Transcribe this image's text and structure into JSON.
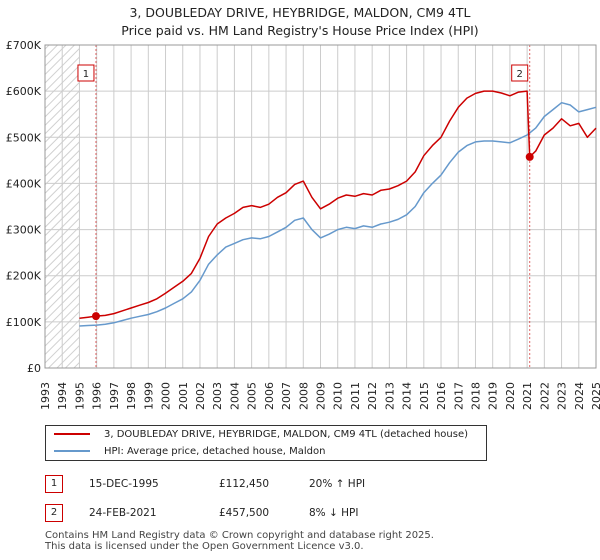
{
  "chart_data": {
    "type": "line",
    "title": "3, DOUBLEDAY DRIVE, HEYBRIDGE, MALDON, CM9 4TL",
    "subtitle": "Price paid vs. HM Land Registry's House Price Index (HPI)",
    "xlabel": "",
    "ylabel": "",
    "xlim": [
      1993,
      2025
    ],
    "ylim": [
      0,
      700000
    ],
    "x_ticks": [
      "1993",
      "1994",
      "1995",
      "1996",
      "1997",
      "1998",
      "1999",
      "2000",
      "2001",
      "2002",
      "2003",
      "2004",
      "2005",
      "2006",
      "2007",
      "2008",
      "2009",
      "2010",
      "2011",
      "2012",
      "2013",
      "2014",
      "2015",
      "2016",
      "2017",
      "2018",
      "2019",
      "2020",
      "2021",
      "2022",
      "2023",
      "2024",
      "2025"
    ],
    "y_ticks": [
      {
        "value": 0,
        "label": "£0"
      },
      {
        "value": 100000,
        "label": "£100K"
      },
      {
        "value": 200000,
        "label": "£200K"
      },
      {
        "value": 300000,
        "label": "£300K"
      },
      {
        "value": 400000,
        "label": "£400K"
      },
      {
        "value": 500000,
        "label": "£500K"
      },
      {
        "value": 600000,
        "label": "£600K"
      },
      {
        "value": 700000,
        "label": "£700K"
      }
    ],
    "hatched_ranges": [
      [
        1993,
        1995.0
      ],
      [
        2025.0,
        2025.5
      ]
    ],
    "grid": true,
    "series": [
      {
        "name": "3, DOUBLEDAY DRIVE, HEYBRIDGE, MALDON, CM9 4TL (detached house)",
        "color": "#cc0000",
        "x": [
          1995.0,
          1995.5,
          1995.96,
          1996.5,
          1997.0,
          1997.5,
          1998.0,
          1998.5,
          1999.0,
          1999.5,
          2000.0,
          2000.5,
          2001.0,
          2001.5,
          2002.0,
          2002.5,
          2003.0,
          2003.5,
          2004.0,
          2004.5,
          2005.0,
          2005.5,
          2006.0,
          2006.5,
          2007.0,
          2007.5,
          2008.0,
          2008.5,
          2009.0,
          2009.5,
          2010.0,
          2010.5,
          2011.0,
          2011.5,
          2012.0,
          2012.5,
          2013.0,
          2013.5,
          2014.0,
          2014.5,
          2015.0,
          2015.5,
          2016.0,
          2016.5,
          2017.0,
          2017.5,
          2018.0,
          2018.5,
          2019.0,
          2019.5,
          2020.0,
          2020.5,
          2021.0,
          2021.15,
          2021.5,
          2022.0,
          2022.5,
          2023.0,
          2023.5,
          2024.0,
          2024.5,
          2025.0
        ],
        "values": [
          108000,
          110000,
          112450,
          114000,
          118000,
          124000,
          130000,
          136000,
          142000,
          150000,
          162000,
          175000,
          188000,
          205000,
          238000,
          285000,
          312000,
          325000,
          335000,
          348000,
          352000,
          348000,
          355000,
          370000,
          380000,
          398000,
          405000,
          370000,
          345000,
          355000,
          368000,
          375000,
          372000,
          378000,
          375000,
          385000,
          388000,
          395000,
          405000,
          425000,
          460000,
          482000,
          500000,
          535000,
          565000,
          585000,
          595000,
          600000,
          600000,
          596000,
          590000,
          598000,
          600000,
          457500,
          470000,
          505000,
          520000,
          540000,
          525000,
          530000,
          500000,
          520000
        ]
      },
      {
        "name": "HPI: Average price, detached house, Maldon",
        "color": "#6699cc",
        "x": [
          1995.0,
          1995.5,
          1996.0,
          1996.5,
          1997.0,
          1997.5,
          1998.0,
          1998.5,
          1999.0,
          1999.5,
          2000.0,
          2000.5,
          2001.0,
          2001.5,
          2002.0,
          2002.5,
          2003.0,
          2003.5,
          2004.0,
          2004.5,
          2005.0,
          2005.5,
          2006.0,
          2006.5,
          2007.0,
          2007.5,
          2008.0,
          2008.5,
          2009.0,
          2009.5,
          2010.0,
          2010.5,
          2011.0,
          2011.5,
          2012.0,
          2012.5,
          2013.0,
          2013.5,
          2014.0,
          2014.5,
          2015.0,
          2015.5,
          2016.0,
          2016.5,
          2017.0,
          2017.5,
          2018.0,
          2018.5,
          2019.0,
          2019.5,
          2020.0,
          2020.5,
          2021.0,
          2021.5,
          2022.0,
          2022.5,
          2023.0,
          2023.5,
          2024.0,
          2024.5,
          2025.0
        ],
        "values": [
          91000,
          92000,
          93000,
          95000,
          98000,
          103000,
          108000,
          112000,
          116000,
          122000,
          130000,
          140000,
          150000,
          165000,
          190000,
          225000,
          245000,
          262000,
          270000,
          278000,
          282000,
          280000,
          285000,
          295000,
          305000,
          320000,
          325000,
          300000,
          282000,
          290000,
          300000,
          305000,
          302000,
          308000,
          305000,
          312000,
          316000,
          322000,
          332000,
          350000,
          380000,
          400000,
          418000,
          445000,
          468000,
          482000,
          490000,
          492000,
          492000,
          490000,
          488000,
          496000,
          505000,
          520000,
          545000,
          560000,
          575000,
          570000,
          555000,
          560000,
          565000
        ]
      }
    ],
    "annotations": [
      {
        "label": "1",
        "x": 1995.96,
        "value": 112450
      },
      {
        "label": "2",
        "x": 2021.15,
        "value": 457500
      }
    ]
  },
  "legend": {
    "property": "3, DOUBLEDAY DRIVE, HEYBRIDGE, MALDON, CM9 4TL (detached house)",
    "hpi": "HPI: Average price, detached house, Maldon"
  },
  "sales": [
    {
      "num": "1",
      "date": "15-DEC-1995",
      "price": "£112,450",
      "hpi": "20% ↑ HPI"
    },
    {
      "num": "2",
      "date": "24-FEB-2021",
      "price": "£457,500",
      "hpi": "8% ↓ HPI"
    }
  ],
  "footer": "Contains HM Land Registry data © Crown copyright and database right 2025.\nThis data is licensed under the Open Government Licence v3.0.",
  "colors": {
    "property": "#cc0000",
    "hpi": "#6699cc",
    "grid": "#cccccc"
  }
}
